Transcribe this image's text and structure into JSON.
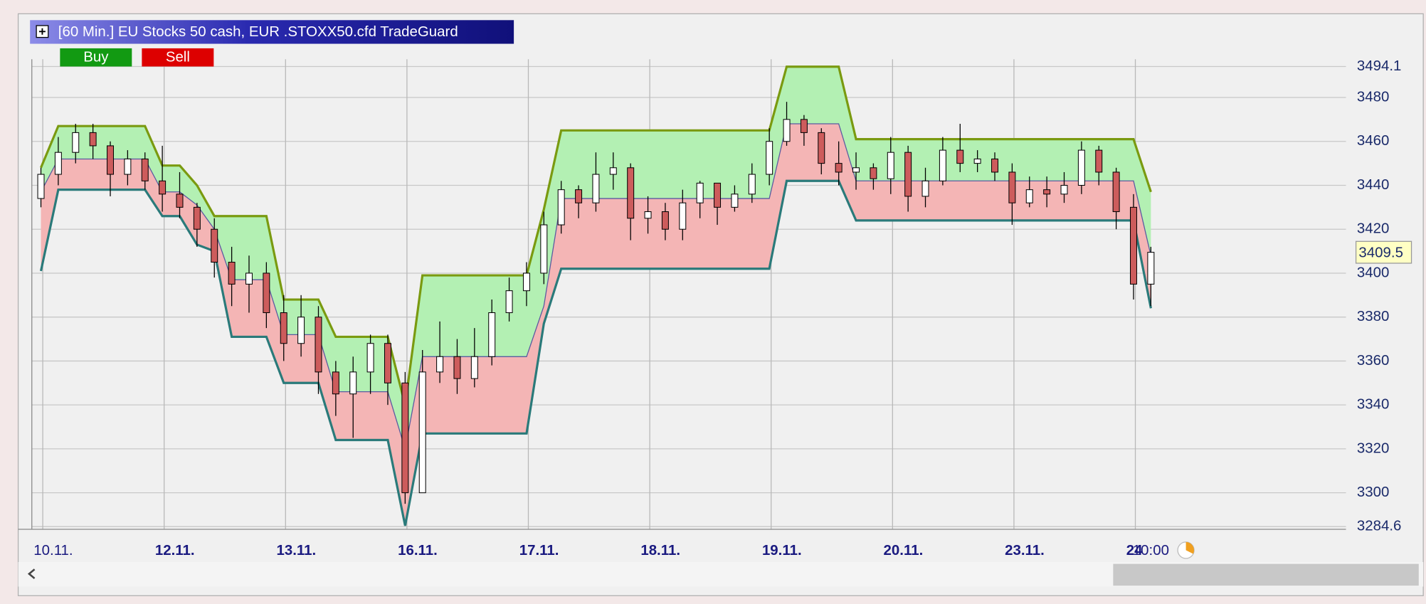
{
  "chart_data": {
    "type": "candlestick",
    "title": "[60 Min.] EU Stocks 50 cash, EUR  .STOXX50.cfd TradeGuard",
    "buttons": [
      "Buy",
      "Sell"
    ],
    "categories": [
      "10.11.",
      null,
      null,
      null,
      null,
      null,
      null,
      "12.11.",
      null,
      null,
      null,
      null,
      null,
      null,
      "13.11.",
      null,
      null,
      null,
      null,
      null,
      null,
      "16.11.",
      null,
      null,
      null,
      null,
      null,
      null,
      "17.11.",
      null,
      null,
      null,
      null,
      null,
      null,
      "18.11.",
      null,
      null,
      null,
      null,
      null,
      null,
      "19.11.",
      null,
      null,
      null,
      null,
      null,
      null,
      "20.11.",
      null,
      null,
      null,
      null,
      null,
      null,
      "23.11.",
      null,
      null,
      null,
      null,
      null,
      null,
      "24",
      "10:00"
    ],
    "open": [
      3434,
      3445,
      3455,
      3464,
      3458,
      3445,
      3452,
      3442,
      3436,
      3430,
      3420,
      3405,
      3395,
      3400,
      3382,
      3368,
      3380,
      3355,
      3345,
      3355,
      3368,
      3350,
      3300,
      3355,
      3362,
      3352,
      3362,
      3382,
      3392,
      3400,
      3422,
      3438,
      3432,
      3445,
      3448,
      3425,
      3428,
      3420,
      3432,
      3441,
      3430,
      3436,
      3445,
      3460,
      3470,
      3464,
      3450,
      3446,
      3448,
      3443,
      3455,
      3435,
      3442,
      3456,
      3450,
      3452,
      3446,
      3432,
      3438,
      3436,
      3440,
      3456,
      3446,
      3430,
      3395
    ],
    "high": [
      3448,
      3462,
      3468,
      3468,
      3460,
      3456,
      3455,
      3458,
      3446,
      3432,
      3425,
      3412,
      3408,
      3405,
      3390,
      3390,
      3385,
      3360,
      3362,
      3372,
      3372,
      3355,
      3365,
      3378,
      3370,
      3375,
      3388,
      3398,
      3405,
      3428,
      3442,
      3440,
      3455,
      3455,
      3450,
      3435,
      3432,
      3438,
      3442,
      3440,
      3440,
      3450,
      3466,
      3478,
      3472,
      3466,
      3460,
      3455,
      3450,
      3462,
      3458,
      3448,
      3462,
      3468,
      3456,
      3455,
      3450,
      3444,
      3444,
      3446,
      3460,
      3458,
      3448,
      3436,
      3412
    ],
    "low": [
      3430,
      3440,
      3450,
      3452,
      3435,
      3440,
      3438,
      3428,
      3425,
      3412,
      3398,
      3385,
      3382,
      3375,
      3360,
      3362,
      3345,
      3335,
      3325,
      3345,
      3340,
      3295,
      3300,
      3350,
      3345,
      3348,
      3358,
      3378,
      3385,
      3395,
      3418,
      3425,
      3428,
      3438,
      3415,
      3418,
      3415,
      3415,
      3425,
      3422,
      3428,
      3432,
      3440,
      3458,
      3458,
      3445,
      3440,
      3438,
      3438,
      3436,
      3428,
      3430,
      3440,
      3446,
      3446,
      3442,
      3422,
      3430,
      3430,
      3432,
      3436,
      3440,
      3420,
      3388,
      3385
    ],
    "close": [
      3445,
      3455,
      3464,
      3458,
      3445,
      3452,
      3442,
      3436,
      3430,
      3420,
      3405,
      3395,
      3400,
      3382,
      3368,
      3380,
      3355,
      3345,
      3355,
      3368,
      3350,
      3300,
      3355,
      3362,
      3352,
      3362,
      3382,
      3392,
      3400,
      3422,
      3438,
      3432,
      3445,
      3448,
      3425,
      3428,
      3420,
      3432,
      3441,
      3430,
      3436,
      3445,
      3460,
      3470,
      3464,
      3450,
      3446,
      3448,
      3443,
      3455,
      3435,
      3442,
      3456,
      3450,
      3452,
      3446,
      3432,
      3438,
      3436,
      3440,
      3456,
      3446,
      3428,
      3395,
      3409.5
    ],
    "up_color": "#ffffff",
    "down_color": "#cd5c5c",
    "upper_band": {
      "color": "#7a9a10",
      "values": [
        3448,
        3467,
        3467,
        3467,
        3467,
        3467,
        3467,
        3449,
        3449,
        3440,
        3426,
        3426,
        3426,
        3426,
        3388,
        3388,
        3388,
        3371,
        3371,
        3371,
        3371,
        3340,
        3399,
        3399,
        3399,
        3399,
        3399,
        3399,
        3399,
        3429,
        3465,
        3465,
        3465,
        3465,
        3465,
        3465,
        3465,
        3465,
        3465,
        3465,
        3465,
        3465,
        3465,
        3494,
        3494,
        3494,
        3494,
        3461,
        3461,
        3461,
        3461,
        3461,
        3461,
        3461,
        3461,
        3461,
        3461,
        3461,
        3461,
        3461,
        3461,
        3461,
        3461,
        3461,
        3437
      ]
    },
    "middle_band": {
      "color": "#5a5aa0",
      "values": [
        3437,
        3452,
        3452,
        3452,
        3452,
        3452,
        3452,
        3437,
        3437,
        3431,
        3420,
        3397,
        3397,
        3397,
        3372,
        3372,
        3372,
        3346,
        3346,
        3346,
        3346,
        3320,
        3362,
        3362,
        3362,
        3362,
        3362,
        3362,
        3362,
        3385,
        3434,
        3434,
        3434,
        3434,
        3434,
        3434,
        3434,
        3434,
        3434,
        3434,
        3434,
        3434,
        3434,
        3468,
        3468,
        3468,
        3468,
        3442,
        3442,
        3442,
        3442,
        3442,
        3442,
        3442,
        3442,
        3442,
        3442,
        3442,
        3442,
        3442,
        3442,
        3442,
        3442,
        3442,
        3408
      ]
    },
    "lower_band": {
      "color": "#2a7a7a",
      "values": [
        3401,
        3438,
        3438,
        3438,
        3438,
        3438,
        3438,
        3426,
        3426,
        3413,
        3410,
        3371,
        3371,
        3371,
        3350,
        3350,
        3350,
        3324,
        3324,
        3324,
        3324,
        3285,
        3327,
        3327,
        3327,
        3327,
        3327,
        3327,
        3327,
        3377,
        3402,
        3402,
        3402,
        3402,
        3402,
        3402,
        3402,
        3402,
        3402,
        3402,
        3402,
        3402,
        3402,
        3442,
        3442,
        3442,
        3442,
        3424,
        3424,
        3424,
        3424,
        3424,
        3424,
        3424,
        3424,
        3424,
        3424,
        3424,
        3424,
        3424,
        3424,
        3424,
        3424,
        3424,
        3384
      ]
    },
    "upper_fill": "#b3f0b3",
    "lower_fill": "#f4b5b5",
    "last_price": 3409.5,
    "ylim": [
      3284.6,
      3494.1
    ],
    "yticks": [
      3284.6,
      3300,
      3320,
      3340,
      3360,
      3380,
      3400,
      3420,
      3440,
      3460,
      3480,
      3494.1
    ],
    "grid": true
  }
}
